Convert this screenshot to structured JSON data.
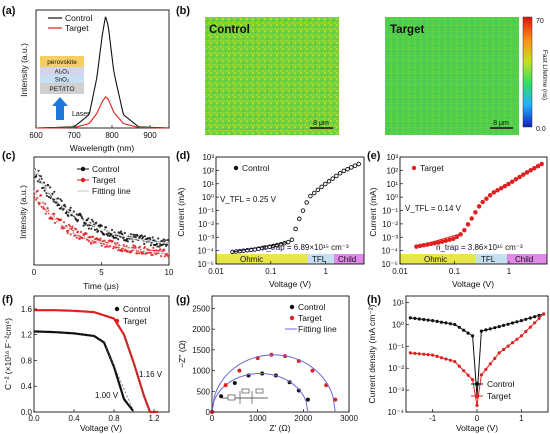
{
  "figure": {
    "a": {
      "label": "(a)",
      "legend": [
        "Control",
        "Target"
      ],
      "colors": {
        "control": "#111111",
        "target": "#e02020"
      },
      "xlabel": "Wavelength (nm)",
      "ylabel": "Intensity (a.u.)",
      "xticks": [
        "600",
        "700",
        "800",
        "900"
      ],
      "xlim": [
        600,
        950
      ],
      "layers": [
        "perovskite",
        "Al₂O₃",
        "SnO₂",
        "PET/ITO"
      ],
      "laser_label": "Laser"
    },
    "b": {
      "label": "(b)",
      "map_left_title": "Control",
      "map_right_title": "Target",
      "scale_left": "8 μm",
      "scale_right": "8 μm",
      "colorbar_label": "Fast Lifetime (ns)",
      "colorbar_max": "70",
      "colorbar_min": "0.0"
    },
    "c": {
      "label": "(c)",
      "legend": [
        "Control",
        "Target",
        "Fitting line"
      ],
      "xlabel": "Time (μs)",
      "ylabel": "Intensity (a.u.)",
      "xticks": [
        "0",
        "5",
        "10"
      ]
    },
    "d": {
      "label": "(d)",
      "legend": "Control",
      "xlabel": "Voltage (V)",
      "ylabel": "Current (mA)",
      "xticks": [
        "0.01",
        "0.1",
        "1"
      ],
      "yticks": [
        "10⁻⁵",
        "10⁻⁴",
        "10⁻³",
        "10⁻²",
        "10⁻¹",
        "10⁰",
        "10¹",
        "10²",
        "10³"
      ],
      "vtfl": "V_TFL = 0.25 V",
      "ntrap": "n_trap = 6.89×10¹⁵ cm⁻³",
      "regions": [
        "Ohmic",
        "TFL",
        "Child"
      ]
    },
    "e": {
      "label": "(e)",
      "legend": "Target",
      "xlabel": "Voltage (V)",
      "ylabel": "Current (mA)",
      "xticks": [
        "0.01",
        "0.1",
        "1"
      ],
      "yticks": [
        "10⁻⁵",
        "10⁻⁴",
        "10⁻³",
        "10⁻²",
        "10⁻¹",
        "10⁰",
        "10¹",
        "10²",
        "10³"
      ],
      "vtfl": "V_TFL = 0.14 V",
      "ntrap": "n_trap = 3.86×10¹⁵ cm⁻³",
      "regions": [
        "Ohmic",
        "TFL",
        "Child"
      ]
    },
    "f": {
      "label": "(f)",
      "legend": [
        "Control",
        "Target"
      ],
      "xlabel": "Voltage (V)",
      "ylabel": "C⁻² (×10¹⁶ F⁻²cm⁴)",
      "xticks": [
        "0.0",
        "0.4",
        "0.8",
        "1.2"
      ],
      "yticks": [
        "0.0",
        "0.4",
        "0.8",
        "1.2",
        "1.6"
      ],
      "vbi_control": "1.00 V",
      "vbi_target": "1.16 V"
    },
    "g": {
      "label": "(g)",
      "legend": [
        "Control",
        "Target",
        "Fitting line"
      ],
      "xlabel": "Z' (Ω)",
      "ylabel": "−Z'' (Ω)",
      "xticks": [
        "0",
        "1000",
        "2000",
        "3000"
      ],
      "yticks": [
        "0",
        "500",
        "1000",
        "1500",
        "2000",
        "2500"
      ]
    },
    "h": {
      "label": "(h)",
      "legend": [
        "Control",
        "Target"
      ],
      "xlabel": "Voltage (V)",
      "ylabel": "Current density (mA cm⁻²)",
      "xticks": [
        "-1",
        "0",
        "1"
      ],
      "yticks": [
        "10⁻⁴",
        "10⁻³",
        "10⁻²",
        "10⁻¹",
        "10⁰",
        "10¹"
      ]
    }
  },
  "chart_data": [
    {
      "panel": "a",
      "type": "line",
      "series": [
        {
          "name": "Control",
          "x": [
            600,
            700,
            740,
            760,
            775,
            783,
            790,
            805,
            830,
            870,
            950
          ],
          "y": [
            0,
            0.01,
            0.12,
            0.45,
            0.85,
            1.0,
            0.92,
            0.5,
            0.12,
            0.01,
            0
          ]
        },
        {
          "name": "Target",
          "x": [
            600,
            700,
            740,
            760,
            775,
            783,
            790,
            805,
            830,
            870,
            950
          ],
          "y": [
            0,
            0.003,
            0.04,
            0.13,
            0.24,
            0.28,
            0.26,
            0.14,
            0.04,
            0.005,
            0
          ]
        }
      ],
      "xlabel": "Wavelength (nm)",
      "ylabel": "Intensity (a.u.)",
      "xlim": [
        600,
        950
      ]
    },
    {
      "panel": "c",
      "type": "scatter",
      "series": [
        {
          "name": "Control",
          "x": [
            0,
            1,
            2,
            3,
            4,
            5,
            6,
            7,
            8,
            9,
            10
          ],
          "y": [
            0.8,
            0.62,
            0.5,
            0.41,
            0.35,
            0.3,
            0.26,
            0.23,
            0.21,
            0.19,
            0.18
          ]
        },
        {
          "name": "Target",
          "x": [
            0,
            1,
            2,
            3,
            4,
            5,
            6,
            7,
            8,
            9,
            10
          ],
          "y": [
            0.62,
            0.45,
            0.34,
            0.27,
            0.22,
            0.19,
            0.16,
            0.14,
            0.12,
            0.11,
            0.1
          ]
        }
      ],
      "xlabel": "Time (μs)",
      "ylabel": "Intensity (a.u.)",
      "xlim": [
        0,
        10
      ]
    },
    {
      "panel": "d",
      "type": "scatter",
      "series": [
        {
          "name": "Control",
          "x": [
            0.02,
            0.05,
            0.1,
            0.2,
            0.25,
            0.3,
            0.5,
            0.8,
            1,
            2,
            4
          ],
          "y": [
            8e-05,
            0.00012,
            0.0002,
            0.0004,
            0.0007,
            0.01,
            1,
            5,
            10,
            80,
            300
          ]
        }
      ],
      "xlabel": "Voltage (V)",
      "ylabel": "Current (mA)",
      "xlim": [
        0.01,
        5
      ],
      "ylim": [
        1e-05,
        1000
      ],
      "scale": "log"
    },
    {
      "panel": "e",
      "type": "scatter",
      "series": [
        {
          "name": "Target",
          "x": [
            0.02,
            0.05,
            0.1,
            0.14,
            0.2,
            0.3,
            0.5,
            1,
            2,
            4
          ],
          "y": [
            0.0002,
            0.0004,
            0.0008,
            0.002,
            0.02,
            0.3,
            2,
            10,
            60,
            300
          ]
        }
      ],
      "xlabel": "Voltage (V)",
      "ylabel": "Current (mA)",
      "xlim": [
        0.01,
        5
      ],
      "ylim": [
        1e-05,
        1000
      ],
      "scale": "log"
    },
    {
      "panel": "f",
      "type": "line",
      "series": [
        {
          "name": "Control",
          "x": [
            0,
            0.2,
            0.4,
            0.6,
            0.7,
            0.8,
            0.9,
            1.0
          ],
          "y": [
            1.25,
            1.24,
            1.22,
            1.18,
            1.08,
            0.7,
            0.2,
            0
          ]
        },
        {
          "name": "Target",
          "x": [
            0,
            0.2,
            0.4,
            0.6,
            0.8,
            0.9,
            1.0,
            1.1,
            1.16,
            1.25
          ],
          "y": [
            1.58,
            1.58,
            1.57,
            1.55,
            1.45,
            1.2,
            0.75,
            0.25,
            0,
            0
          ]
        }
      ],
      "xlabel": "Voltage (V)",
      "ylabel": "C⁻² (×10¹⁶ F⁻²cm⁴)",
      "xlim": [
        0,
        1.35
      ],
      "ylim": [
        0,
        1.8
      ]
    },
    {
      "panel": "g",
      "type": "scatter",
      "series": [
        {
          "name": "Control",
          "x": [
            0,
            200,
            500,
            800,
            1100,
            1400,
            1700,
            1900,
            2100
          ],
          "y": [
            0,
            380,
            700,
            880,
            930,
            880,
            720,
            520,
            300
          ]
        },
        {
          "name": "Target",
          "x": [
            0,
            300,
            600,
            1000,
            1300,
            1600,
            1900,
            2200,
            2500,
            2700
          ],
          "y": [
            0,
            650,
            1000,
            1300,
            1380,
            1350,
            1230,
            1000,
            650,
            300
          ]
        }
      ],
      "xlabel": "Z' (Ω)",
      "ylabel": "−Z'' (Ω)",
      "xlim": [
        0,
        3000
      ],
      "ylim": [
        0,
        2800
      ]
    },
    {
      "panel": "h",
      "type": "line",
      "series": [
        {
          "name": "Control",
          "x": [
            -1.5,
            -1,
            -0.5,
            -0.1,
            0,
            0.1,
            0.5,
            1,
            1.5
          ],
          "y": [
            2,
            1.5,
            1.0,
            0.3,
            0.0005,
            0.5,
            0.8,
            1.5,
            3
          ]
        },
        {
          "name": "Target",
          "x": [
            -1.5,
            -1,
            -0.5,
            -0.1,
            0,
            0.1,
            0.5,
            1,
            1.5
          ],
          "y": [
            0.05,
            0.04,
            0.02,
            0.003,
            0.0002,
            0.005,
            0.05,
            0.3,
            3
          ]
        }
      ],
      "xlabel": "Voltage (V)",
      "ylabel": "Current density (mA cm⁻²)",
      "xlim": [
        -1.6,
        1.6
      ],
      "scale": "log"
    }
  ]
}
